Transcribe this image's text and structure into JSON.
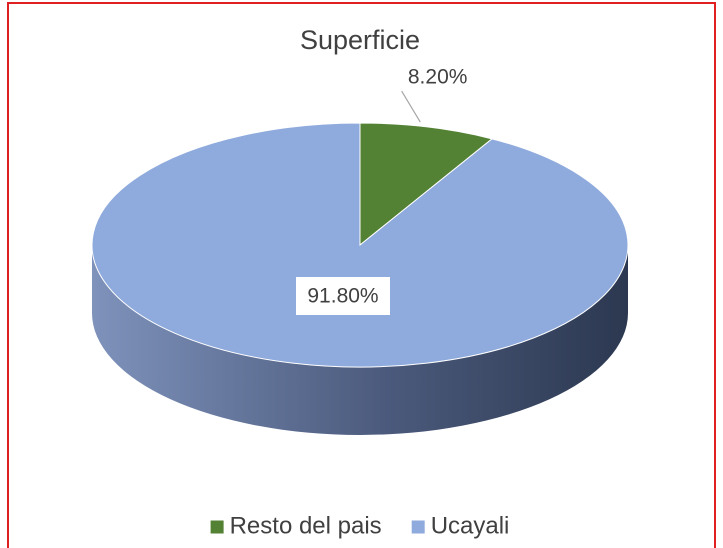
{
  "chart_data": {
    "type": "pie",
    "title": "Superficie",
    "categories": [
      "Resto del pais",
      "Ucayali"
    ],
    "values": [
      8.2,
      91.8
    ],
    "value_labels": [
      "8.20%",
      "91.80%"
    ],
    "colors": [
      "#548235",
      "#8faadc"
    ],
    "legend": "bottom"
  }
}
